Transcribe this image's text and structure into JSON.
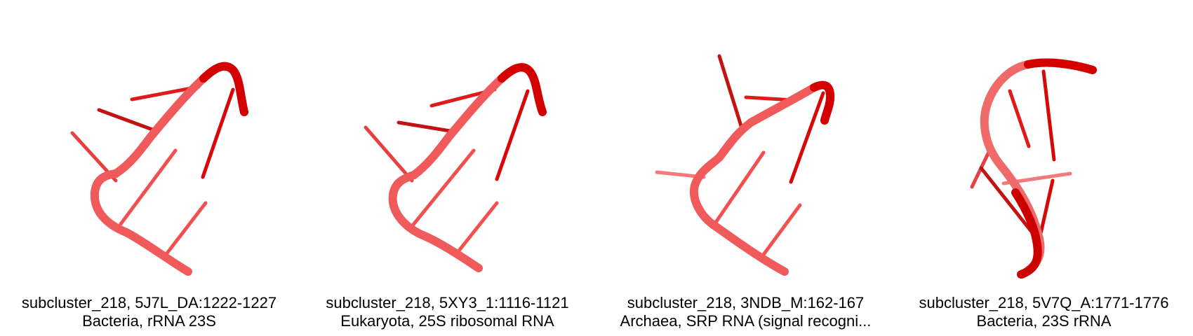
{
  "panels": [
    {
      "title": "subcluster_218, 5J7L_DA:1222-1227",
      "subtitle": "Bacteria, rRNA 23S"
    },
    {
      "title": "subcluster_218, 5XY3_1:1116-1121",
      "subtitle": "Eukaryota, 25S ribosomal RNA"
    },
    {
      "title": "subcluster_218, 3NDB_M:162-167",
      "subtitle": "Archaea, SRP RNA (signal recogni..."
    },
    {
      "title": "subcluster_218, 5V7Q_A:1771-1776",
      "subtitle": "Bacteria, 23S rRNA"
    }
  ],
  "colors": {
    "backbone_light": "#f25a5a",
    "backbone_dark": "#d90000",
    "base": "#e81c1c",
    "base_faded": "#f27a7a",
    "caption_text": "#000000"
  }
}
